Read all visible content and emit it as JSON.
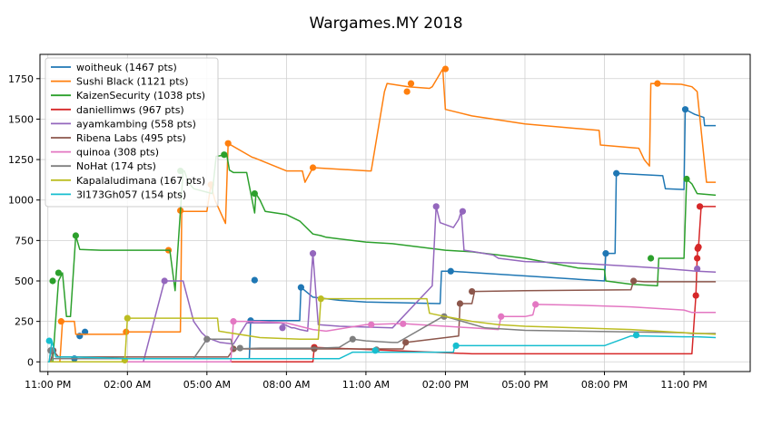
{
  "chart_data": {
    "type": "line",
    "title": "Wargames.MY 2018",
    "xlabel": "",
    "ylabel": "",
    "x_unit": "hours since 11:00 PM",
    "xlim": [
      -0.3,
      26.5
    ],
    "ylim": [
      -60,
      1900
    ],
    "yticks": [
      0,
      250,
      500,
      750,
      1000,
      1250,
      1500,
      1750
    ],
    "xticks": [
      {
        "x": 0,
        "label": "11:00 PM"
      },
      {
        "x": 3,
        "label": "02:00 AM"
      },
      {
        "x": 6,
        "label": "05:00 AM"
      },
      {
        "x": 9,
        "label": "08:00 AM"
      },
      {
        "x": 12,
        "label": "11:00 AM"
      },
      {
        "x": 15,
        "label": "02:00 PM"
      },
      {
        "x": 18,
        "label": "05:00 PM"
      },
      {
        "x": 21,
        "label": "08:00 PM"
      },
      {
        "x": 24,
        "label": "11:00 PM"
      }
    ],
    "grid": true,
    "legend": "top-left",
    "series": [
      {
        "name": "woitheuk (1467 pts)",
        "color": "#1f77b4",
        "x": [
          1.0,
          1.2,
          5.0,
          7.0,
          7.6,
          7.65,
          7.8,
          8.1,
          9.0,
          9.5,
          9.55,
          10.0,
          11.0,
          12.0,
          14.8,
          14.85,
          15.2,
          21.0,
          21.05,
          21.4,
          21.45,
          23.2,
          23.3,
          24.0,
          24.05,
          24.4,
          24.75,
          24.78,
          25.2
        ],
        "y": [
          20,
          20,
          20,
          20,
          20,
          255,
          255,
          255,
          255,
          255,
          460,
          400,
          380,
          370,
          360,
          560,
          560,
          500,
          670,
          670,
          1165,
          1150,
          1070,
          1065,
          1560,
          1530,
          1510,
          1460,
          1460
        ],
        "points": [
          [
            1.0,
            20
          ],
          [
            1.2,
            160
          ],
          [
            1.4,
            185
          ],
          [
            7.65,
            255
          ],
          [
            7.8,
            505
          ],
          [
            9.55,
            460
          ],
          [
            15.2,
            560
          ],
          [
            21.05,
            670
          ],
          [
            21.45,
            1165
          ],
          [
            24.05,
            1560
          ]
        ]
      },
      {
        "name": "Sushi Black (1121 pts)",
        "color": "#ff7f0e",
        "x": [
          0.0,
          0.45,
          0.55,
          1.0,
          1.05,
          2.9,
          3.0,
          4.0,
          4.55,
          5.0,
          5.05,
          6.0,
          6.15,
          6.3,
          6.7,
          6.8,
          7.7,
          7.8,
          9.0,
          9.6,
          9.7,
          10.0,
          10.5,
          12.1,
          12.2,
          12.7,
          12.8,
          13.6,
          14.4,
          14.5,
          14.9,
          15.0,
          16.0,
          18.0,
          20.8,
          20.85,
          22.3,
          22.5,
          22.7,
          22.75,
          23.9,
          24.3,
          24.5,
          24.85,
          25.2
        ],
        "y": [
          0,
          0,
          250,
          250,
          170,
          170,
          185,
          185,
          185,
          185,
          930,
          930,
          1095,
          1000,
          855,
          1350,
          1265,
          1260,
          1180,
          1180,
          1110,
          1200,
          1195,
          1180,
          1180,
          1670,
          1720,
          1700,
          1690,
          1700,
          1810,
          1560,
          1520,
          1470,
          1430,
          1340,
          1320,
          1250,
          1210,
          1720,
          1715,
          1700,
          1670,
          1110,
          1110
        ],
        "points": [
          [
            0.5,
            250
          ],
          [
            2.95,
            185
          ],
          [
            4.55,
            690
          ],
          [
            5.0,
            935
          ],
          [
            6.15,
            1095
          ],
          [
            6.8,
            1350
          ],
          [
            10.0,
            1200
          ],
          [
            13.55,
            1670
          ],
          [
            13.7,
            1720
          ],
          [
            15.0,
            1810
          ],
          [
            23.0,
            1720
          ]
        ]
      },
      {
        "name": "KaizenSecurity (1038 pts)",
        "color": "#2ca02c",
        "x": [
          0.0,
          0.18,
          0.4,
          0.55,
          0.7,
          0.85,
          1.05,
          1.2,
          2.0,
          4.6,
          4.8,
          5.1,
          5.15,
          5.3,
          5.5,
          6.2,
          6.35,
          6.75,
          6.85,
          7.0,
          7.5,
          7.8,
          7.85,
          8.0,
          8.2,
          8.6,
          9.0,
          9.5,
          10.0,
          10.3,
          10.5,
          11.0,
          11.5,
          12.0,
          13.0,
          14.0,
          15.0,
          16.0,
          17.0,
          18.0,
          20.0,
          21.0,
          21.05,
          22.0,
          23.0,
          23.05,
          23.9,
          24.0,
          24.1,
          24.3,
          24.5,
          25.2
        ],
        "y": [
          0,
          0,
          500,
          550,
          280,
          280,
          780,
          695,
          690,
          690,
          440,
          1180,
          1180,
          1110,
          1070,
          1040,
          1270,
          1280,
          1185,
          1170,
          1170,
          920,
          1040,
          1000,
          930,
          920,
          910,
          870,
          790,
          780,
          770,
          760,
          750,
          740,
          730,
          710,
          690,
          680,
          660,
          640,
          580,
          570,
          500,
          480,
          470,
          640,
          640,
          640,
          1130,
          1100,
          1040,
          1030
        ],
        "points": [
          [
            0.18,
            500
          ],
          [
            0.4,
            550
          ],
          [
            1.05,
            780
          ],
          [
            5.0,
            1180
          ],
          [
            6.65,
            1280
          ],
          [
            7.8,
            1040
          ],
          [
            22.75,
            640
          ],
          [
            24.1,
            1130
          ]
        ]
      },
      {
        "name": "daniellimws (967 pts)",
        "color": "#d62728",
        "x": [
          0.0,
          10.0,
          10.05,
          16.0,
          20.0,
          22.0,
          24.3,
          24.45,
          24.5,
          24.52,
          24.55,
          24.65,
          25.2
        ],
        "y": [
          0,
          0,
          90,
          50,
          50,
          50,
          50,
          410,
          640,
          700,
          710,
          960,
          960
        ],
        "points": [
          [
            10.05,
            90
          ],
          [
            24.45,
            410
          ],
          [
            24.5,
            640
          ],
          [
            24.52,
            700
          ],
          [
            24.55,
            710
          ],
          [
            24.6,
            960
          ]
        ]
      },
      {
        "name": "ayamkambing (558 pts)",
        "color": "#9467bd",
        "x": [
          0.0,
          3.6,
          4.4,
          4.6,
          5.0,
          5.1,
          5.5,
          5.8,
          6.0,
          6.5,
          7.0,
          7.5,
          8.0,
          8.8,
          9.2,
          9.3,
          9.5,
          9.8,
          10.0,
          10.2,
          11.0,
          12.0,
          13.0,
          14.5,
          14.65,
          14.8,
          15.3,
          15.5,
          15.6,
          15.7,
          16.1,
          16.8,
          17.0,
          18.0,
          20.0,
          21.0,
          22.0,
          23.0,
          24.5,
          25.2
        ],
        "y": [
          0,
          0,
          500,
          500,
          500,
          500,
          250,
          180,
          150,
          120,
          110,
          240,
          240,
          240,
          210,
          210,
          200,
          190,
          670,
          230,
          220,
          215,
          210,
          470,
          960,
          860,
          830,
          880,
          930,
          690,
          680,
          660,
          640,
          620,
          610,
          600,
          590,
          580,
          560,
          555
        ],
        "points": [
          [
            4.4,
            500
          ],
          [
            6.0,
            140
          ],
          [
            8.85,
            210
          ],
          [
            10.0,
            670
          ],
          [
            14.65,
            960
          ],
          [
            15.65,
            930
          ],
          [
            24.5,
            575
          ]
        ]
      },
      {
        "name": "Ribena Labs (495 pts)",
        "color": "#8c564b",
        "x": [
          0.0,
          0.1,
          0.2,
          0.4,
          1.0,
          6.8,
          7.0,
          10.0,
          10.05,
          13.4,
          13.5,
          15.5,
          15.55,
          16.0,
          16.1,
          18.0,
          22.0,
          22.1,
          22.5,
          25.2
        ],
        "y": [
          0,
          0,
          70,
          30,
          30,
          30,
          80,
          80,
          80,
          80,
          120,
          160,
          360,
          360,
          435,
          440,
          445,
          500,
          495,
          495
        ],
        "points": [
          [
            0.2,
            70
          ],
          [
            7.0,
            80
          ],
          [
            10.05,
            80
          ],
          [
            13.5,
            120
          ],
          [
            15.55,
            360
          ],
          [
            16.0,
            435
          ],
          [
            22.1,
            500
          ]
        ]
      },
      {
        "name": "quinoa (308 pts)",
        "color": "#e377c2",
        "x": [
          0.0,
          1.0,
          3.0,
          5.0,
          6.5,
          6.9,
          7.0,
          8.0,
          9.0,
          10.0,
          10.5,
          12.0,
          13.0,
          13.5,
          14.0,
          15.0,
          16.0,
          17.0,
          17.1,
          18.0,
          18.3,
          18.4,
          20.0,
          22.0,
          24.0,
          24.3,
          25.2
        ],
        "y": [
          0,
          0,
          0,
          0,
          0,
          0,
          250,
          250,
          240,
          200,
          190,
          230,
          235,
          235,
          230,
          220,
          210,
          200,
          280,
          280,
          290,
          355,
          350,
          340,
          320,
          305,
          305
        ],
        "points": [
          [
            7.0,
            250
          ],
          [
            12.2,
            230
          ],
          [
            13.4,
            235
          ],
          [
            17.1,
            280
          ],
          [
            18.4,
            355
          ]
        ]
      },
      {
        "name": "NoHat (174 pts)",
        "color": "#7f7f7f",
        "x": [
          0.0,
          0.05,
          0.1,
          0.2,
          3.0,
          5.5,
          6.0,
          6.9,
          7.0,
          8.0,
          9.0,
          10.2,
          11.0,
          11.5,
          12.0,
          13.0,
          13.2,
          14.9,
          15.0,
          16.5,
          18.0,
          20.0,
          22.0,
          24.0,
          24.3,
          25.2
        ],
        "y": [
          0,
          0,
          70,
          20,
          20,
          20,
          140,
          140,
          80,
          85,
          85,
          85,
          90,
          140,
          130,
          120,
          120,
          280,
          280,
          210,
          195,
          190,
          185,
          180,
          175,
          175
        ],
        "points": [
          [
            0.1,
            70
          ],
          [
            6.0,
            140
          ],
          [
            7.25,
            85
          ],
          [
            11.5,
            140
          ],
          [
            12.4,
            75
          ],
          [
            14.95,
            280
          ]
        ]
      },
      {
        "name": "Kapalaludimana (167 pts)",
        "color": "#bcbd22",
        "x": [
          0.0,
          2.9,
          3.0,
          4.5,
          6.0,
          6.4,
          6.45,
          8.0,
          9.5,
          10.2,
          10.3,
          12.0,
          13.5,
          14.3,
          14.4,
          15.0,
          16.0,
          17.0,
          18.0,
          20.0,
          22.0,
          24.0,
          25.2
        ],
        "y": [
          0,
          0,
          270,
          270,
          270,
          270,
          190,
          150,
          140,
          140,
          390,
          390,
          390,
          390,
          300,
          280,
          250,
          230,
          220,
          210,
          200,
          180,
          170
        ],
        "points": [
          [
            2.9,
            10
          ],
          [
            3.0,
            270
          ],
          [
            10.3,
            390
          ]
        ]
      },
      {
        "name": "3l173Gh057 (154 pts)",
        "color": "#17becf",
        "x": [
          0.0,
          0.05,
          0.15,
          0.3,
          1.0,
          3.0,
          6.0,
          9.0,
          11.0,
          11.5,
          12.0,
          13.0,
          14.0,
          15.3,
          15.35,
          17.0,
          19.0,
          21.0,
          22.0,
          22.5,
          24.0,
          24.5,
          25.2
        ],
        "y": [
          0,
          0,
          130,
          30,
          30,
          20,
          20,
          20,
          20,
          60,
          60,
          60,
          60,
          60,
          100,
          100,
          100,
          100,
          160,
          160,
          155,
          155,
          150
        ],
        "points": [
          [
            0.05,
            130
          ],
          [
            12.35,
            70
          ],
          [
            15.4,
            100
          ],
          [
            22.2,
            165
          ]
        ]
      }
    ]
  }
}
